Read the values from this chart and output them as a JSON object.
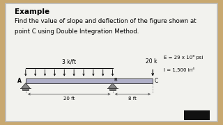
{
  "bg_outer": "#c8a870",
  "bg_inner": "#f2f2ee",
  "border_color": "#bbbbbb",
  "title": "Example",
  "subtitle_line1": "Find the value of slope and deflection of the figure shown at",
  "subtitle_line2": "point C using Double Integration Method.",
  "udl_label": "3 k/ft",
  "point_load_label": "20 k",
  "dim_20ft": "20 ft",
  "dim_8ft": "8 ft",
  "E_label": "E = 29 x 10⁶ psi",
  "I_label": "I = 1,500 in⁴",
  "bx0": 0.115,
  "bx1": 0.505,
  "bx2": 0.685,
  "by": 0.335,
  "bh": 0.038,
  "label_fontsize": 5.5,
  "title_fontsize": 7.5,
  "subtitle_fontsize": 6.2
}
